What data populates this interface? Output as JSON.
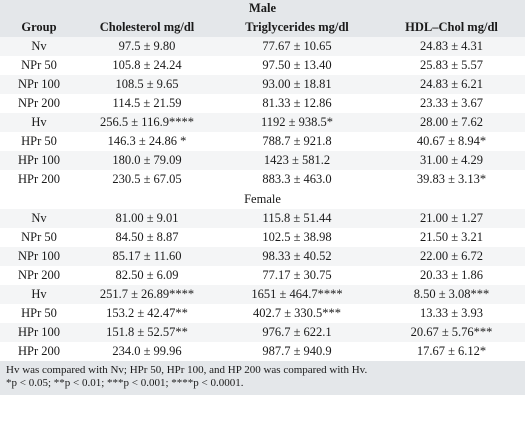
{
  "section_male": "Male",
  "section_female": "Female",
  "headers": [
    "Group",
    "Cholesterol mg/dl",
    "Triglycerides mg/dl",
    "HDL–Chol mg/dl"
  ],
  "male_rows": [
    [
      "Nv",
      "97.5 ± 9.80",
      "77.67 ± 10.65",
      "24.83 ± 4.31"
    ],
    [
      "NPr 50",
      "105.8 ± 24.24",
      "97.50 ± 13.40",
      "25.83 ± 5.57"
    ],
    [
      "NPr 100",
      "108.5 ± 9.65",
      "93.00 ± 18.81",
      "24.83 ± 6.21"
    ],
    [
      "NPr 200",
      "114.5 ± 21.59",
      "81.33 ± 12.86",
      "23.33 ± 3.67"
    ],
    [
      "Hv",
      "256.5 ± 116.9****",
      "1192 ± 938.5*",
      "28.00 ± 7.62"
    ],
    [
      "HPr 50",
      "146.3 ± 24.86 *",
      "788.7 ± 921.8",
      "40.67 ± 8.94*"
    ],
    [
      "HPr 100",
      "180.0 ± 79.09",
      "1423 ± 581.2",
      "31.00 ± 4.29"
    ],
    [
      "HPr 200",
      "230.5 ± 67.05",
      "883.3 ± 463.0",
      "39.83 ± 3.13*"
    ]
  ],
  "female_rows": [
    [
      "Nv",
      "81.00 ± 9.01",
      "115.8 ± 51.44",
      "21.00 ± 1.27"
    ],
    [
      "NPr 50",
      "84.50 ± 8.87",
      "102.5 ± 38.98",
      "21.50 ± 3.21"
    ],
    [
      "NPr 100",
      "85.17 ± 11.60",
      "98.33 ± 40.52",
      "22.00 ± 6.72"
    ],
    [
      "NPr 200",
      "82.50 ± 6.09",
      "77.17 ± 30.75",
      "20.33 ± 1.86"
    ],
    [
      "Hv",
      "251.7 ± 26.89****",
      "1651 ± 464.7****",
      "8.50 ± 3.08***"
    ],
    [
      "HPr 50",
      "153.2 ± 42.47**",
      "402.7 ± 330.5***",
      "13.33 ± 3.93"
    ],
    [
      "HPr 100",
      "151.8 ± 52.57**",
      "976.7 ± 622.1",
      "20.67 ± 5.76***"
    ],
    [
      "HPr 200",
      "234.0 ± 99.96",
      "987.7 ± 940.9",
      "17.67 ± 6.12*"
    ]
  ],
  "notes": [
    "Hv was compared with Nv; HPr 50, HPr 100, and HP 200 was compared with Hv.",
    "*p < 0.05; **p < 0.01; ***p < 0.001; ****p < 0.0001."
  ]
}
